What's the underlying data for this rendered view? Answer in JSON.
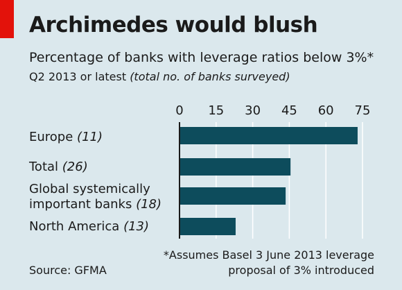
{
  "header": {
    "title": "Archimedes would blush",
    "subtitle": "Percentage of banks with leverage ratios below 3%*",
    "subtitle2_main": "Q2 2013 or latest",
    "subtitle2_paren": "(total no. of banks surveyed)"
  },
  "colors": {
    "bar": "#0d4c5c",
    "background": "#dbe8ed",
    "grid": "#ffffff",
    "accent": "#e3120b"
  },
  "chart_data": {
    "type": "bar",
    "orientation": "horizontal",
    "categories": [
      {
        "name": "Europe",
        "count": "(11)"
      },
      {
        "name": "Total",
        "count": "(26)"
      },
      {
        "name": "Global systemically important banks",
        "name_line1": "Global systemically",
        "name_line2": "important banks",
        "count": "(18)"
      },
      {
        "name": "North America",
        "count": "(13)"
      }
    ],
    "values": [
      73,
      45.5,
      43.5,
      23
    ],
    "xlim": [
      0,
      75
    ],
    "xticks": [
      "0",
      "15",
      "30",
      "45",
      "60",
      "75"
    ],
    "xtick_values": [
      0,
      15,
      30,
      45,
      60,
      75
    ],
    "grid": true,
    "axis_position": "top"
  },
  "footnote": {
    "line1": "*Assumes Basel 3 June 2013 leverage",
    "line2": "proposal of 3% introduced"
  },
  "source": "Source: GFMA"
}
